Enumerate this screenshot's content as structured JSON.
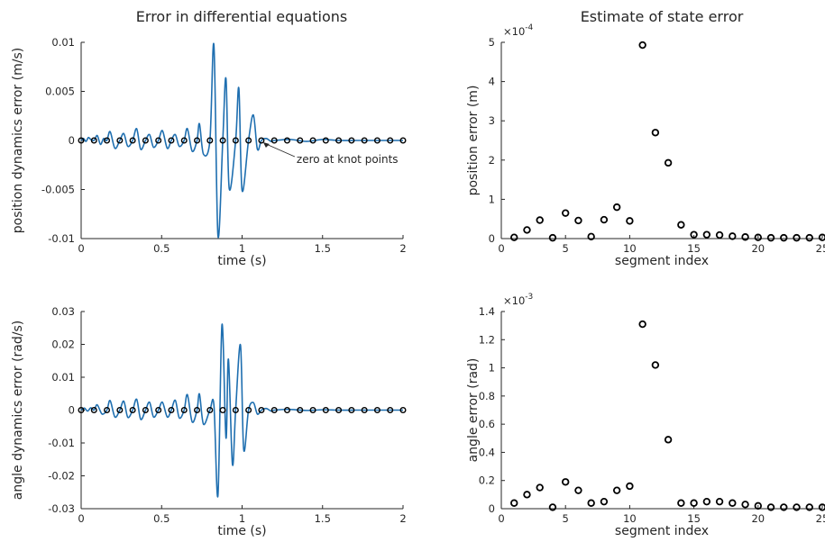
{
  "chart_data": [
    {
      "type": "line",
      "title": "Error in differential equations",
      "xlabel": "time (s)",
      "ylabel": "position dynamics error (m/s)",
      "xlim": [
        0,
        2
      ],
      "ylim": [
        -0.01,
        0.01
      ],
      "xticks": [
        0,
        0.5,
        1,
        1.5,
        2
      ],
      "xtick_labels": [
        "0",
        "0.5",
        "1",
        "1.5",
        "2"
      ],
      "yticks": [
        -0.01,
        -0.005,
        0,
        0.005,
        0.01
      ],
      "ytick_labels": [
        "-0.01",
        "-0.005",
        "0",
        "0.005",
        "0.01"
      ],
      "grid": false,
      "line_color": "#1f6fb0",
      "marker_color": "#000000",
      "series": [
        {
          "points": [
            [
              0.0,
              0
            ],
            [
              0.015,
              0.0002
            ],
            [
              0.03,
              -0.0001
            ],
            [
              0.045,
              0.0003
            ],
            [
              0.06,
              0.0001
            ],
            [
              0.08,
              0
            ],
            [
              0.1,
              0.0005
            ],
            [
              0.12,
              -0.0004
            ],
            [
              0.14,
              0.0002
            ],
            [
              0.16,
              0
            ],
            [
              0.18,
              0.0009
            ],
            [
              0.21,
              -0.0008
            ],
            [
              0.24,
              0
            ],
            [
              0.265,
              0.0007
            ],
            [
              0.29,
              -0.0006
            ],
            [
              0.32,
              0
            ],
            [
              0.345,
              0.0012
            ],
            [
              0.37,
              -0.0009
            ],
            [
              0.4,
              0
            ],
            [
              0.425,
              0.0006
            ],
            [
              0.45,
              -0.0007
            ],
            [
              0.48,
              0
            ],
            [
              0.505,
              0.001
            ],
            [
              0.535,
              -0.0008
            ],
            [
              0.56,
              0
            ],
            [
              0.585,
              0.0006
            ],
            [
              0.61,
              -0.0006
            ],
            [
              0.64,
              0
            ],
            [
              0.66,
              0.0012
            ],
            [
              0.69,
              -0.0011
            ],
            [
              0.72,
              0
            ],
            [
              0.735,
              0.0017
            ],
            [
              0.76,
              -0.0014
            ],
            [
              0.8,
              0
            ],
            [
              0.825,
              0.0097
            ],
            [
              0.85,
              -0.0097
            ],
            [
              0.88,
              0
            ],
            [
              0.9,
              0.0063
            ],
            [
              0.92,
              -0.0049
            ],
            [
              0.96,
              0
            ],
            [
              0.98,
              0.0053
            ],
            [
              1.0,
              -0.0051
            ],
            [
              1.04,
              0
            ],
            [
              1.07,
              0.0026
            ],
            [
              1.095,
              -0.0009
            ],
            [
              1.12,
              0
            ],
            [
              1.15,
              0.0002
            ],
            [
              1.18,
              -0.0001
            ],
            [
              1.2,
              0
            ],
            [
              1.3,
              0.0001
            ],
            [
              1.4,
              -0.0001
            ],
            [
              1.5,
              0.0001
            ],
            [
              1.6,
              0
            ],
            [
              1.7,
              0
            ],
            [
              1.8,
              0
            ],
            [
              1.9,
              0
            ],
            [
              2.0,
              0
            ]
          ]
        }
      ],
      "markers_x": [
        0,
        0.08,
        0.16,
        0.24,
        0.32,
        0.4,
        0.48,
        0.56,
        0.64,
        0.72,
        0.8,
        0.88,
        0.96,
        1.04,
        1.12,
        1.2,
        1.28,
        1.36,
        1.44,
        1.52,
        1.6,
        1.68,
        1.76,
        1.84,
        1.92,
        2.0
      ],
      "markers_y": 0,
      "annotation": {
        "text": "zero at knot points",
        "x": 1.12,
        "y": 0
      }
    },
    {
      "type": "scatter",
      "title": "Estimate of state error",
      "xlabel": "segment index",
      "ylabel": "position error (m)",
      "xlim": [
        0,
        25
      ],
      "ylim": [
        0,
        5
      ],
      "y_multiplier": "×10",
      "y_exponent": "-4",
      "xticks": [
        0,
        5,
        10,
        15,
        20,
        25
      ],
      "xtick_labels": [
        "0",
        "5",
        "10",
        "15",
        "20",
        "25"
      ],
      "yticks": [
        0,
        1,
        2,
        3,
        4,
        5
      ],
      "ytick_labels": [
        "0",
        "1",
        "2",
        "3",
        "4",
        "5"
      ],
      "grid": false,
      "marker_color": "#000000",
      "x": [
        1,
        2,
        3,
        4,
        5,
        6,
        7,
        8,
        9,
        10,
        11,
        12,
        13,
        14,
        15,
        16,
        17,
        18,
        19,
        20,
        21,
        22,
        23,
        24,
        25
      ],
      "y": [
        0.03,
        0.22,
        0.47,
        0.02,
        0.65,
        0.46,
        0.05,
        0.48,
        0.8,
        0.45,
        4.93,
        2.7,
        1.93,
        0.35,
        0.1,
        0.1,
        0.09,
        0.06,
        0.04,
        0.03,
        0.02,
        0.02,
        0.02,
        0.02,
        0.03
      ]
    },
    {
      "type": "line",
      "title": "",
      "xlabel": "time (s)",
      "ylabel": "angle dynamics error (rad/s)",
      "xlim": [
        0,
        2
      ],
      "ylim": [
        -0.03,
        0.03
      ],
      "xticks": [
        0,
        0.5,
        1,
        1.5,
        2
      ],
      "xtick_labels": [
        "0",
        "0.5",
        "1",
        "1.5",
        "2"
      ],
      "yticks": [
        -0.03,
        -0.02,
        -0.01,
        0,
        0.01,
        0.02,
        0.03
      ],
      "ytick_labels": [
        "-0.03",
        "-0.02",
        "-0.01",
        "0",
        "0.01",
        "0.02",
        "0.03"
      ],
      "grid": false,
      "line_color": "#1f6fb0",
      "marker_color": "#000000",
      "series": [
        {
          "points": [
            [
              0.0,
              0
            ],
            [
              0.02,
              0.0006
            ],
            [
              0.04,
              -0.0003
            ],
            [
              0.06,
              0.0007
            ],
            [
              0.08,
              0
            ],
            [
              0.1,
              0.0016
            ],
            [
              0.13,
              -0.0012
            ],
            [
              0.16,
              0
            ],
            [
              0.18,
              0.0029
            ],
            [
              0.21,
              -0.0021
            ],
            [
              0.24,
              0
            ],
            [
              0.265,
              0.0027
            ],
            [
              0.29,
              -0.0022
            ],
            [
              0.32,
              0
            ],
            [
              0.345,
              0.0033
            ],
            [
              0.37,
              -0.0028
            ],
            [
              0.4,
              0
            ],
            [
              0.425,
              0.0024
            ],
            [
              0.45,
              -0.0021
            ],
            [
              0.48,
              0
            ],
            [
              0.505,
              0.0024
            ],
            [
              0.535,
              -0.0021
            ],
            [
              0.56,
              0
            ],
            [
              0.585,
              0.003
            ],
            [
              0.61,
              -0.0024
            ],
            [
              0.64,
              0
            ],
            [
              0.66,
              0.0047
            ],
            [
              0.69,
              -0.0036
            ],
            [
              0.72,
              0
            ],
            [
              0.735,
              0.0049
            ],
            [
              0.76,
              -0.0043
            ],
            [
              0.8,
              0
            ],
            [
              0.825,
              0.0015
            ],
            [
              0.85,
              -0.026
            ],
            [
              0.875,
              0.026
            ],
            [
              0.9,
              -0.0085
            ],
            [
              0.915,
              0.0155
            ],
            [
              0.94,
              -0.0165
            ],
            [
              0.96,
              0
            ],
            [
              0.99,
              0.0198
            ],
            [
              1.01,
              -0.012
            ],
            [
              1.04,
              0
            ],
            [
              1.07,
              0.0023
            ],
            [
              1.095,
              -0.0012
            ],
            [
              1.12,
              0
            ],
            [
              1.15,
              0.0005
            ],
            [
              1.18,
              -0.0003
            ],
            [
              1.2,
              0
            ],
            [
              1.3,
              0.0002
            ],
            [
              1.4,
              -0.0001
            ],
            [
              1.5,
              0.0001
            ],
            [
              1.6,
              0
            ],
            [
              1.7,
              0
            ],
            [
              1.8,
              0
            ],
            [
              1.9,
              0
            ],
            [
              2.0,
              0
            ]
          ]
        }
      ],
      "markers_x": [
        0,
        0.08,
        0.16,
        0.24,
        0.32,
        0.4,
        0.48,
        0.56,
        0.64,
        0.72,
        0.8,
        0.88,
        0.96,
        1.04,
        1.12,
        1.2,
        1.28,
        1.36,
        1.44,
        1.52,
        1.6,
        1.68,
        1.76,
        1.84,
        1.92,
        2.0
      ],
      "markers_y": 0
    },
    {
      "type": "scatter",
      "title": "",
      "xlabel": "segment index",
      "ylabel": "angle error (rad)",
      "xlim": [
        0,
        25
      ],
      "ylim": [
        0,
        1.4
      ],
      "y_multiplier": "×10",
      "y_exponent": "-3",
      "xticks": [
        0,
        5,
        10,
        15,
        20,
        25
      ],
      "xtick_labels": [
        "0",
        "5",
        "10",
        "15",
        "20",
        "25"
      ],
      "yticks": [
        0,
        0.2,
        0.4,
        0.6,
        0.8,
        1,
        1.2,
        1.4
      ],
      "ytick_labels": [
        "0",
        "0.2",
        "0.4",
        "0.6",
        "0.8",
        "1",
        "1.2",
        "1.4"
      ],
      "grid": false,
      "marker_color": "#000000",
      "x": [
        1,
        2,
        3,
        4,
        5,
        6,
        7,
        8,
        9,
        10,
        11,
        12,
        13,
        14,
        15,
        16,
        17,
        18,
        19,
        20,
        21,
        22,
        23,
        24,
        25
      ],
      "y": [
        0.04,
        0.1,
        0.15,
        0.01,
        0.19,
        0.13,
        0.04,
        0.05,
        0.13,
        0.16,
        1.31,
        1.02,
        0.49,
        0.04,
        0.04,
        0.05,
        0.05,
        0.04,
        0.03,
        0.02,
        0.01,
        0.01,
        0.01,
        0.01,
        0.01
      ]
    }
  ]
}
